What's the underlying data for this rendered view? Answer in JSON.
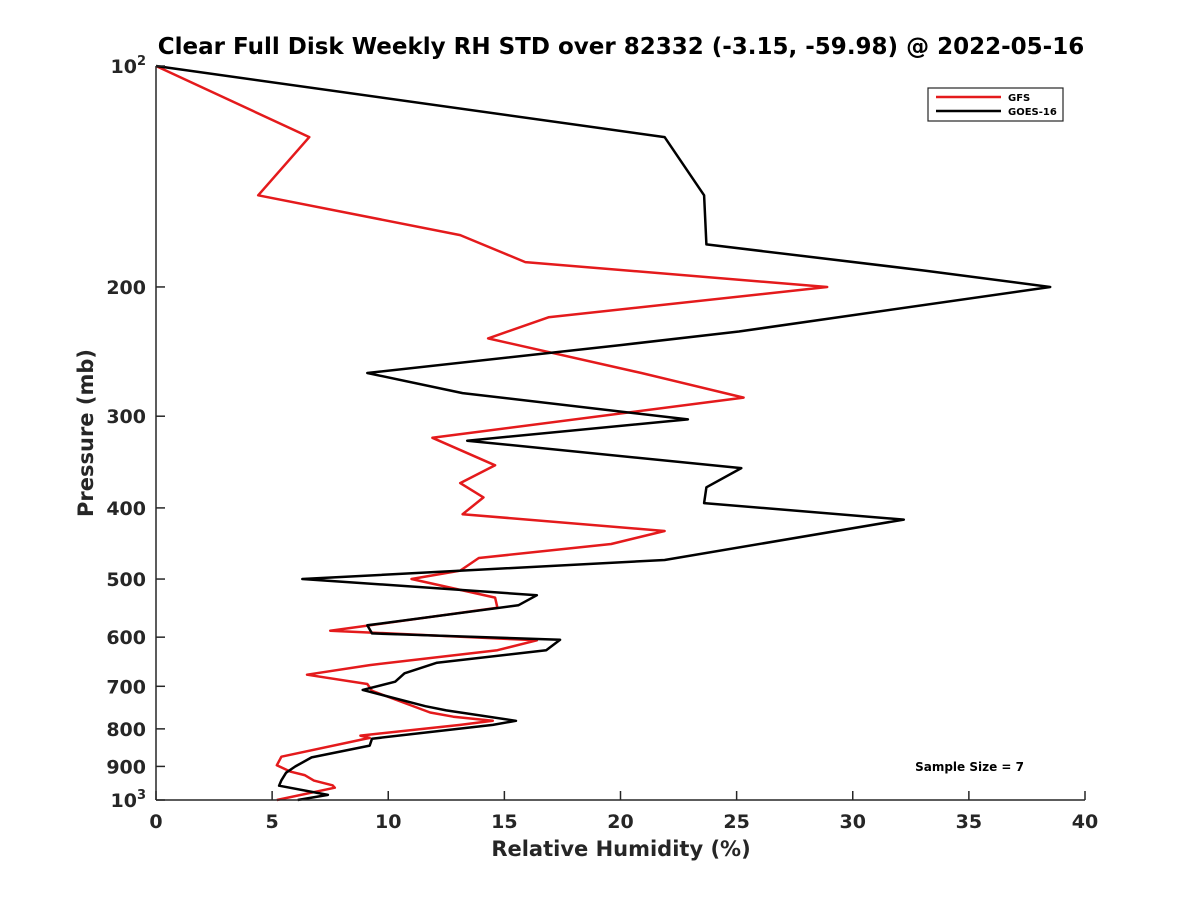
{
  "chart_data": {
    "type": "line",
    "title": "Clear Full Disk Weekly RH STD over 82332 (-3.15, -59.98) @ 2022-05-16",
    "xlabel": "Relative Humidity (%)",
    "ylabel": "Pressure (mb)",
    "xlim": [
      0,
      40
    ],
    "ylim": [
      100,
      1000
    ],
    "y_scale": "log",
    "y_reversed": true,
    "grid": false,
    "legend_position": "top-right",
    "x_ticks": [
      {
        "value": 0,
        "label": "0"
      },
      {
        "value": 5,
        "label": "5"
      },
      {
        "value": 10,
        "label": "10"
      },
      {
        "value": 15,
        "label": "15"
      },
      {
        "value": 20,
        "label": "20"
      },
      {
        "value": 25,
        "label": "25"
      },
      {
        "value": 30,
        "label": "30"
      },
      {
        "value": 35,
        "label": "35"
      },
      {
        "value": 40,
        "label": "40"
      }
    ],
    "y_ticks": [
      {
        "value": 100,
        "label": "10",
        "sup": "2"
      },
      {
        "value": 200,
        "label": "200",
        "sup": ""
      },
      {
        "value": 300,
        "label": "300",
        "sup": ""
      },
      {
        "value": 400,
        "label": "400",
        "sup": ""
      },
      {
        "value": 500,
        "label": "500",
        "sup": ""
      },
      {
        "value": 600,
        "label": "600",
        "sup": ""
      },
      {
        "value": 700,
        "label": "700",
        "sup": ""
      },
      {
        "value": 800,
        "label": "800",
        "sup": ""
      },
      {
        "value": 900,
        "label": "900",
        "sup": ""
      },
      {
        "value": 1000,
        "label": "10",
        "sup": "3"
      }
    ],
    "annotation": "Sample Size = 7",
    "series": [
      {
        "name": "GFS",
        "color": "#e41a1c",
        "points": [
          [
            0,
            100
          ],
          [
            6.6,
            125
          ],
          [
            4.4,
            150
          ],
          [
            13.1,
            170
          ],
          [
            15.9,
            185
          ],
          [
            28.9,
            200
          ],
          [
            16.9,
            220
          ],
          [
            14.3,
            235
          ],
          [
            20.9,
            262
          ],
          [
            25.3,
            283
          ],
          [
            11.9,
            321
          ],
          [
            14.6,
            350
          ],
          [
            13.1,
            370
          ],
          [
            14.1,
            387
          ],
          [
            13.2,
            408
          ],
          [
            21.9,
            430
          ],
          [
            19.6,
            448
          ],
          [
            13.9,
            468
          ],
          [
            13.1,
            487
          ],
          [
            11.0,
            500
          ],
          [
            14.6,
            530
          ],
          [
            14.7,
            547
          ],
          [
            7.5,
            588
          ],
          [
            16.4,
            606
          ],
          [
            14.7,
            625
          ],
          [
            9.2,
            655
          ],
          [
            6.5,
            675
          ],
          [
            9.1,
            695
          ],
          [
            9.3,
            710
          ],
          [
            11.8,
            760
          ],
          [
            12.8,
            770
          ],
          [
            14.5,
            780
          ],
          [
            13.1,
            790
          ],
          [
            8.8,
            817
          ],
          [
            9.2,
            823
          ],
          [
            5.4,
            873
          ],
          [
            5.2,
            897
          ],
          [
            5.8,
            915
          ],
          [
            6.4,
            925
          ],
          [
            6.8,
            941
          ],
          [
            7.6,
            955
          ],
          [
            7.7,
            962
          ],
          [
            5.2,
            1000
          ]
        ]
      },
      {
        "name": "GOES-16",
        "color": "#000000",
        "points": [
          [
            0,
            100
          ],
          [
            21.9,
            125
          ],
          [
            23.6,
            150
          ],
          [
            23.7,
            175
          ],
          [
            33.1,
            190
          ],
          [
            38.5,
            200
          ],
          [
            25.1,
            230
          ],
          [
            20.0,
            240
          ],
          [
            9.1,
            262
          ],
          [
            13.2,
            279
          ],
          [
            22.9,
            303
          ],
          [
            13.4,
            324
          ],
          [
            25.2,
            353
          ],
          [
            23.7,
            375
          ],
          [
            23.6,
            394
          ],
          [
            32.2,
            415
          ],
          [
            21.9,
            471
          ],
          [
            6.3,
            500
          ],
          [
            16.4,
            526
          ],
          [
            15.6,
            543
          ],
          [
            9.1,
            578
          ],
          [
            9.3,
            593
          ],
          [
            17.4,
            605
          ],
          [
            16.8,
            625
          ],
          [
            12.1,
            650
          ],
          [
            10.7,
            672
          ],
          [
            10.3,
            690
          ],
          [
            8.9,
            708
          ],
          [
            11.6,
            745
          ],
          [
            12.5,
            755
          ],
          [
            15.5,
            780
          ],
          [
            14.5,
            790
          ],
          [
            9.3,
            825
          ],
          [
            9.2,
            843
          ],
          [
            6.7,
            875
          ],
          [
            6.0,
            900
          ],
          [
            5.6,
            918
          ],
          [
            5.4,
            940
          ],
          [
            5.3,
            956
          ],
          [
            7.4,
            984
          ],
          [
            6.1,
            1000
          ]
        ]
      }
    ]
  }
}
